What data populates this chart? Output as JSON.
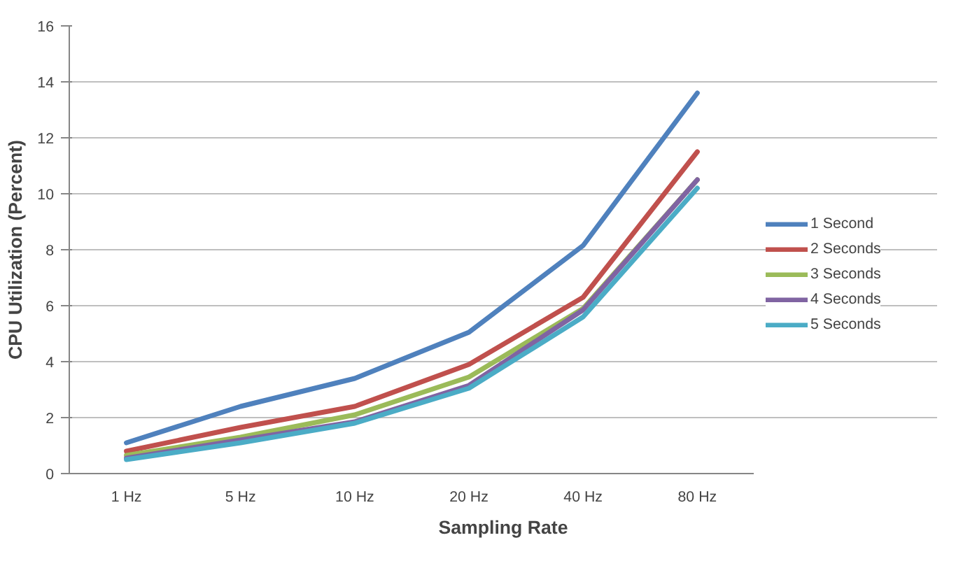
{
  "chart_data": {
    "type": "line",
    "xlabel": "Sampling Rate",
    "ylabel": "CPU Utilization (Percent)",
    "categories": [
      "1 Hz",
      "5 Hz",
      "10 Hz",
      "20 Hz",
      "40 Hz",
      "80 Hz"
    ],
    "ylim": [
      0,
      16
    ],
    "yticks": [
      0,
      2,
      4,
      6,
      8,
      10,
      12,
      14,
      16
    ],
    "grid": "y",
    "legend": "right",
    "marker": "none",
    "line_style": "solid",
    "series": [
      {
        "name": "1 Second",
        "color": "#4f81bd",
        "values": [
          1.1,
          2.4,
          3.4,
          5.05,
          8.15,
          13.6
        ]
      },
      {
        "name": "2 Seconds",
        "color": "#c0504d",
        "values": [
          0.8,
          1.65,
          2.4,
          3.9,
          6.3,
          11.5
        ]
      },
      {
        "name": "3 Seconds",
        "color": "#9bbb59",
        "values": [
          0.65,
          1.3,
          2.1,
          3.45,
          5.9,
          10.5
        ]
      },
      {
        "name": "4 Seconds",
        "color": "#8064a2",
        "values": [
          0.55,
          1.2,
          1.85,
          3.15,
          5.85,
          10.5
        ]
      },
      {
        "name": "5 Seconds",
        "color": "#4bacc6",
        "values": [
          0.5,
          1.1,
          1.8,
          3.05,
          5.6,
          10.2
        ]
      }
    ]
  }
}
